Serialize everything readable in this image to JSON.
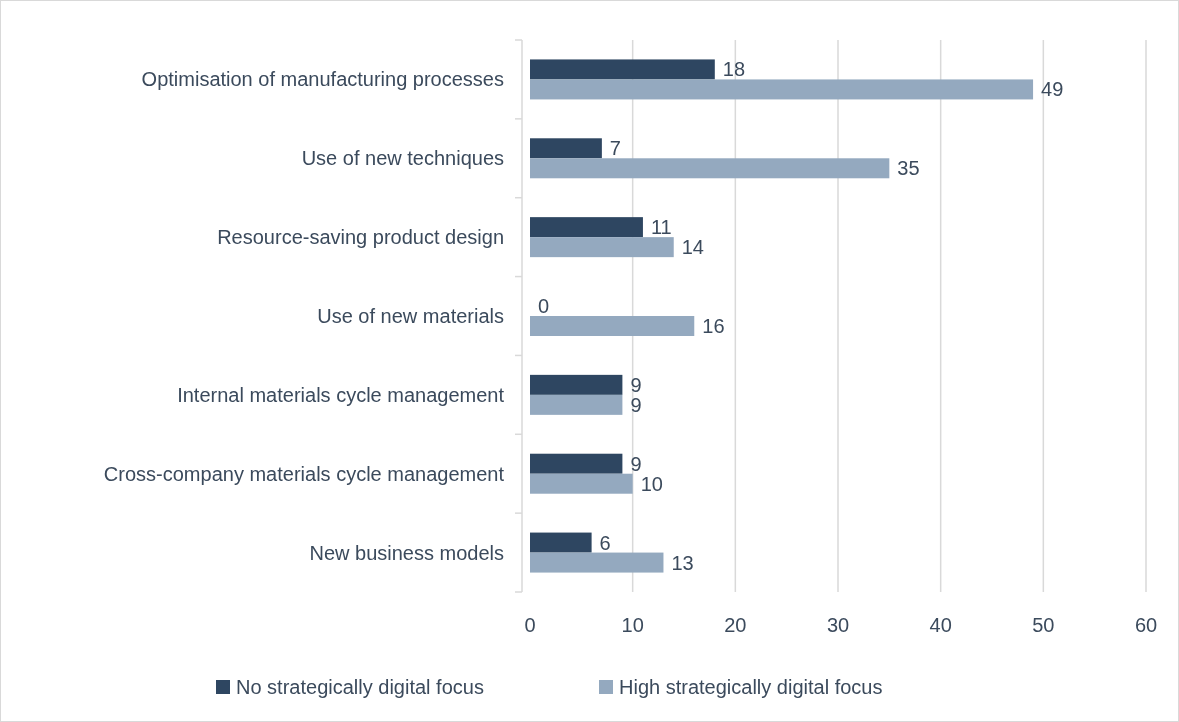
{
  "chart_data": {
    "type": "bar",
    "orientation": "horizontal",
    "categories": [
      "Optimisation of manufacturing processes",
      "Use of new techniques",
      "Resource-saving product design",
      "Use of new materials",
      "Internal materials cycle management",
      "Cross-company materials cycle management",
      "New business models"
    ],
    "series": [
      {
        "name": "No strategically digital focus",
        "color": "#2e4661",
        "values": [
          18,
          7,
          11,
          0,
          9,
          9,
          6
        ]
      },
      {
        "name": "High strategically digital focus",
        "color": "#94a9bf",
        "values": [
          49,
          35,
          14,
          16,
          9,
          10,
          13
        ]
      }
    ],
    "xlim": [
      0,
      60
    ],
    "xticks": [
      0,
      10,
      20,
      30,
      40,
      50,
      60
    ],
    "grid": "x",
    "legend": "bottom",
    "data_labels": true
  }
}
